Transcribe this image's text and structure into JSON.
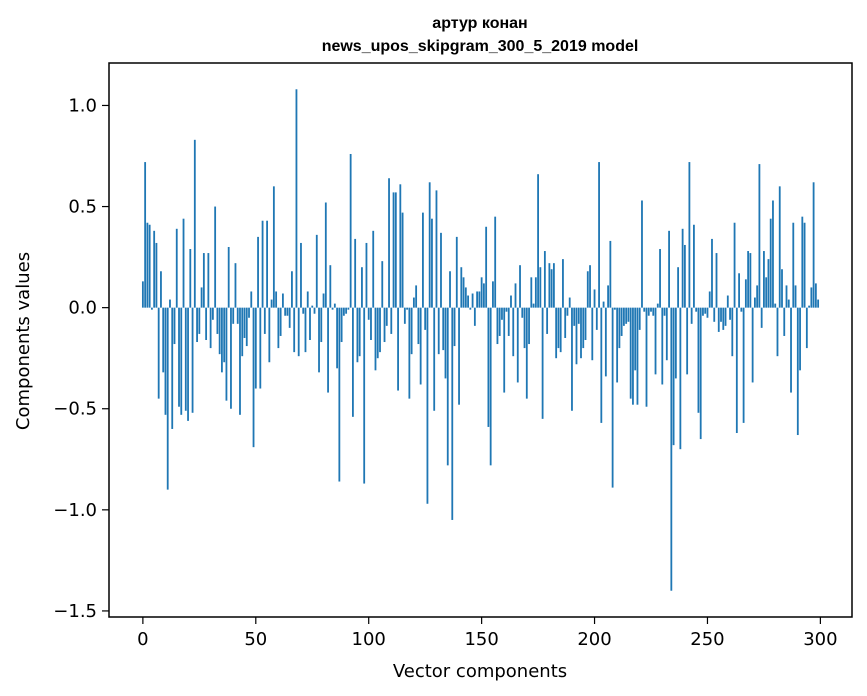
{
  "chart_data": {
    "type": "bar",
    "title": "артур конан",
    "subtitle": "news_upos_skipgram_300_5_2019 model",
    "xlabel": "Vector components",
    "ylabel": "Components values",
    "xlim": [
      -15,
      314
    ],
    "ylim": [
      -1.53,
      1.21
    ],
    "xticks": [
      0,
      50,
      100,
      150,
      200,
      250,
      300
    ],
    "xtick_labels": [
      "0",
      "50",
      "100",
      "150",
      "200",
      "250",
      "300"
    ],
    "yticks": [
      -1.5,
      -1.0,
      -0.5,
      0.0,
      0.5,
      1.0
    ],
    "ytick_labels": [
      "−1.5",
      "−1.0",
      "−0.5",
      "0.0",
      "0.5",
      "1.0"
    ],
    "color": "#1f77b4",
    "values": [
      0.13,
      0.72,
      0.42,
      0.41,
      -0.01,
      0.38,
      0.32,
      -0.45,
      0.18,
      -0.32,
      -0.53,
      -0.9,
      0.04,
      -0.6,
      -0.18,
      0.39,
      -0.49,
      -0.53,
      0.44,
      -0.51,
      -0.56,
      0.29,
      -0.52,
      0.83,
      -0.17,
      -0.13,
      0.1,
      0.27,
      -0.16,
      0.27,
      -0.2,
      -0.06,
      0.5,
      -0.13,
      -0.23,
      -0.32,
      -0.27,
      -0.46,
      0.3,
      -0.5,
      -0.08,
      0.22,
      -0.08,
      -0.53,
      -0.24,
      -0.15,
      -0.19,
      -0.05,
      0.08,
      -0.69,
      -0.4,
      0.35,
      -0.4,
      0.43,
      -0.13,
      0.43,
      -0.27,
      0.04,
      0.6,
      0.08,
      -0.2,
      -0.14,
      0.07,
      -0.04,
      -0.04,
      -0.1,
      0.18,
      -0.22,
      1.08,
      -0.24,
      0.32,
      -0.03,
      -0.22,
      0.08,
      -0.16,
      0.01,
      -0.03,
      0.36,
      -0.32,
      -0.17,
      0.07,
      0.52,
      -0.42,
      0.21,
      -0.01,
      0.02,
      -0.3,
      -0.86,
      -0.17,
      -0.04,
      -0.03,
      -0.01,
      0.76,
      -0.54,
      0.34,
      -0.27,
      -0.24,
      0.2,
      -0.87,
      0.32,
      -0.06,
      -0.16,
      0.38,
      -0.31,
      -0.25,
      -0.22,
      0.23,
      -0.17,
      -0.09,
      0.64,
      -0.13,
      0.57,
      0.57,
      -0.41,
      0.61,
      0.47,
      -0.08,
      -0.01,
      -0.45,
      -0.23,
      0.05,
      0.11,
      -0.18,
      -0.38,
      0.47,
      -0.11,
      -0.97,
      0.62,
      0.44,
      -0.51,
      0.58,
      -0.23,
      0.37,
      -0.21,
      -0.35,
      -0.78,
      0.18,
      -1.05,
      -0.19,
      0.35,
      -0.48,
      0.2,
      0.15,
      0.1,
      0.06,
      -0.01,
      0.07,
      -0.09,
      0.08,
      0.08,
      0.15,
      0.12,
      0.4,
      -0.59,
      -0.78,
      0.13,
      0.45,
      -0.18,
      -0.14,
      -0.06,
      -0.42,
      -0.02,
      -0.14,
      0.06,
      -0.24,
      0.12,
      -0.37,
      0.21,
      -0.05,
      -0.2,
      -0.45,
      -0.18,
      0.15,
      0.02,
      0.15,
      0.66,
      0.2,
      -0.55,
      0.28,
      -0.13,
      0.22,
      0.19,
      0.22,
      -0.25,
      -0.2,
      -0.22,
      0.24,
      -0.15,
      -0.04,
      0.05,
      -0.51,
      -0.09,
      -0.28,
      -0.08,
      -0.25,
      -0.2,
      -0.16,
      0.18,
      0.21,
      -0.26,
      0.09,
      -0.11,
      0.72,
      -0.57,
      0.03,
      -0.34,
      0.11,
      0.33,
      -0.89,
      -0.01,
      -0.37,
      -0.2,
      -0.14,
      -0.09,
      -0.08,
      -0.07,
      -0.45,
      -0.48,
      -0.31,
      -0.48,
      -0.11,
      0.53,
      -0.02,
      -0.49,
      -0.04,
      -0.02,
      -0.04,
      -0.33,
      0.02,
      0.29,
      -0.38,
      -0.04,
      -0.26,
      0.38,
      -1.4,
      -0.68,
      -0.35,
      0.2,
      -0.7,
      0.39,
      0.31,
      -0.33,
      0.72,
      -0.08,
      0.41,
      -0.02,
      -0.52,
      -0.65,
      -0.04,
      -0.03,
      -0.05,
      0.08,
      0.34,
      -0.07,
      0.27,
      -0.12,
      -0.07,
      -0.11,
      -0.09,
      0.06,
      -0.06,
      -0.24,
      0.42,
      -0.62,
      0.17,
      -0.02,
      -0.57,
      0.14,
      0.28,
      0.27,
      -0.37,
      0.05,
      0.11,
      0.71,
      -0.1,
      0.28,
      0.15,
      0.24,
      0.44,
      0.53,
      0.02,
      -0.24,
      0.6,
      0.19,
      -0.14,
      0.11,
      0.04,
      -0.42,
      0.42,
      0.11,
      -0.63,
      -0.31,
      0.45,
      0.42,
      -0.2,
      0.01,
      0.1,
      0.62,
      0.12,
      0.04
    ]
  }
}
